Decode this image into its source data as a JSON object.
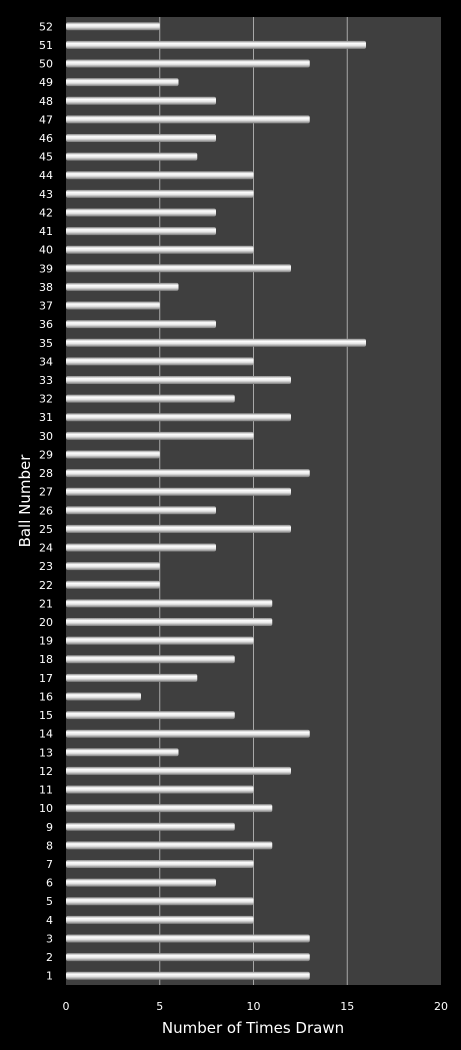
{
  "chart_data": {
    "type": "bar",
    "orientation": "horizontal",
    "title": "",
    "xlabel": "Number of Times Drawn",
    "ylabel": "Ball Number",
    "xlim": [
      0,
      20
    ],
    "x_ticks": [
      0,
      5,
      10,
      15,
      20
    ],
    "grid": "vertical gridlines",
    "colors": {
      "background": "#000000",
      "plot_area": "#3f3f3f",
      "gridline": "#a8a8a8",
      "bar": "#e6e6e6",
      "bar_highlight": "#ffffff",
      "bar_shadow": "#8a8a8a",
      "text": "#ffffff"
    },
    "categories": [
      "1",
      "2",
      "3",
      "4",
      "5",
      "6",
      "7",
      "8",
      "9",
      "10",
      "11",
      "12",
      "13",
      "14",
      "15",
      "16",
      "17",
      "18",
      "19",
      "20",
      "21",
      "22",
      "23",
      "24",
      "25",
      "26",
      "27",
      "28",
      "29",
      "30",
      "31",
      "32",
      "33",
      "34",
      "35",
      "36",
      "37",
      "38",
      "39",
      "40",
      "41",
      "42",
      "43",
      "44",
      "45",
      "46",
      "47",
      "48",
      "49",
      "50",
      "51",
      "52"
    ],
    "values": [
      13,
      13,
      13,
      10,
      10,
      8,
      10,
      11,
      9,
      11,
      10,
      12,
      6,
      13,
      9,
      4,
      7,
      9,
      10,
      11,
      11,
      5,
      5,
      8,
      12,
      8,
      12,
      13,
      5,
      10,
      12,
      9,
      12,
      10,
      16,
      8,
      5,
      6,
      12,
      10,
      8,
      8,
      10,
      10,
      7,
      8,
      13,
      8,
      6,
      13,
      16,
      5
    ]
  }
}
